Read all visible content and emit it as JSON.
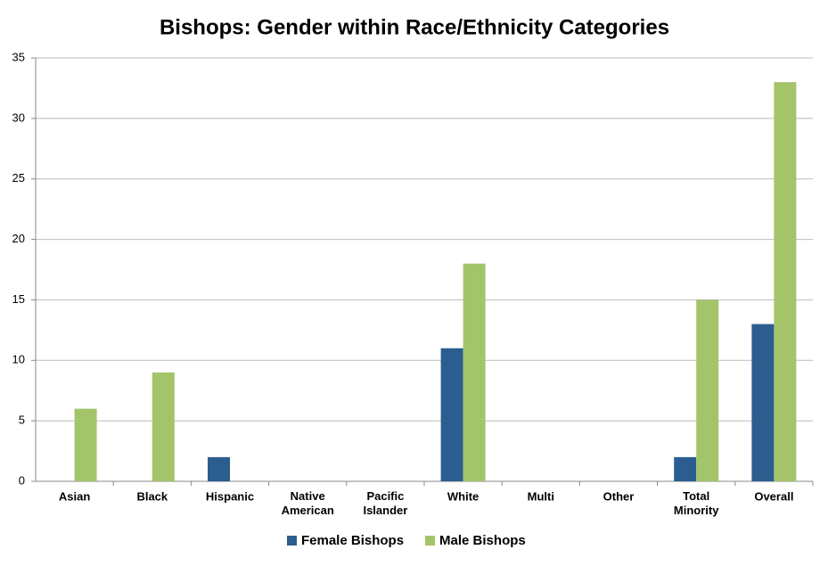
{
  "chart_data": {
    "type": "bar",
    "title": "Bishops: Gender within Race/Ethnicity Categories",
    "categories": [
      "Asian",
      "Black",
      "Hispanic",
      "Native American",
      "Pacific Islander",
      "White",
      "Multi",
      "Other",
      "Total Minority",
      "Overall"
    ],
    "series": [
      {
        "name": "Female Bishops",
        "color": "#2c5d8f",
        "values": [
          0,
          0,
          2,
          0,
          0,
          11,
          0,
          0,
          2,
          13
        ]
      },
      {
        "name": "Male Bishops",
        "color": "#a4c46a",
        "values": [
          6,
          9,
          0,
          0,
          0,
          18,
          0,
          0,
          15,
          33
        ]
      }
    ],
    "ylim": [
      0,
      35
    ],
    "yticks": [
      0,
      5,
      10,
      15,
      20,
      25,
      30,
      35
    ],
    "grid": true,
    "legend": "bottom"
  }
}
